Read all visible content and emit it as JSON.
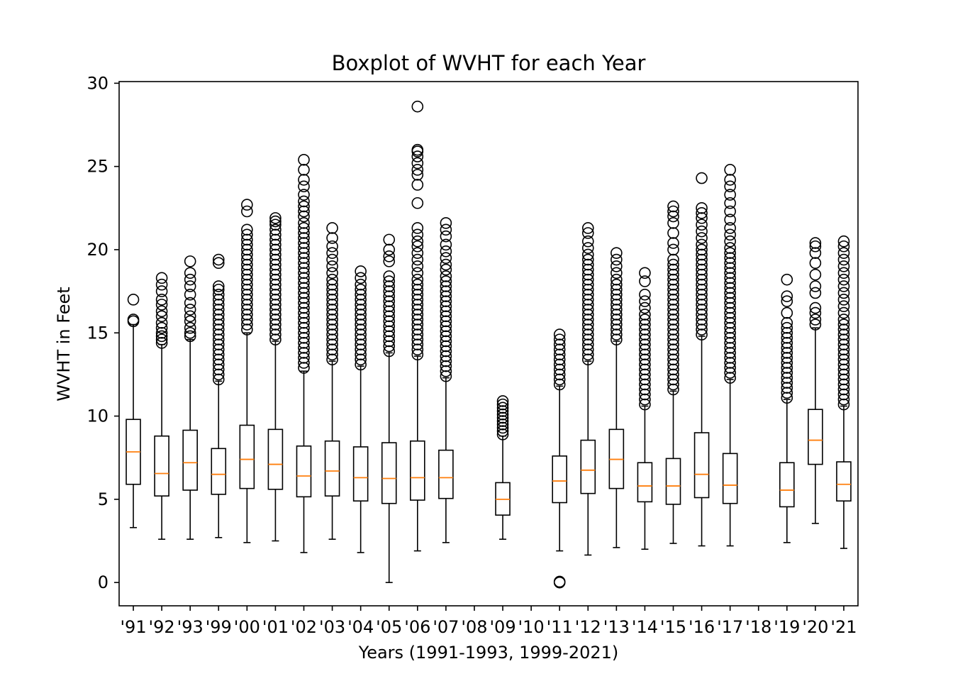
{
  "chart_data": {
    "type": "box",
    "title": "Boxplot of WVHT for each Year",
    "xlabel": "Years (1991-1993, 1999-2021)",
    "ylabel": "WVHT in Feet",
    "ylim": [
      -1.4,
      30.1
    ],
    "yticks": [
      0,
      5,
      10,
      15,
      20,
      25,
      30
    ],
    "grid": false,
    "colors": {
      "box": "#000000",
      "median": "#ff7f0e",
      "background": "#ffffff"
    },
    "categories": [
      "'91",
      "'92",
      "'93",
      "'99",
      "'00",
      "'01",
      "'02",
      "'03",
      "'04",
      "'05",
      "'06",
      "'07",
      "'08",
      "'09",
      "'10",
      "'11",
      "'12",
      "'13",
      "'14",
      "'15",
      "'16",
      "'17",
      "'18",
      "'19",
      "'20",
      "'21"
    ],
    "boxes": [
      {
        "label": "'91",
        "whislo": 3.3,
        "q1": 5.9,
        "med": 7.85,
        "q3": 9.8,
        "whishi": 15.5,
        "fliers": [
          15.7,
          15.8,
          17.0
        ]
      },
      {
        "label": "'92",
        "whislo": 2.6,
        "q1": 5.2,
        "med": 6.55,
        "q3": 8.8,
        "whishi": 14.3,
        "fliers": [
          14.4,
          14.6,
          14.8,
          15.0,
          15.3,
          15.6,
          16.0,
          16.3,
          16.7,
          17.0,
          17.5,
          17.9,
          18.3
        ]
      },
      {
        "label": "'93",
        "whislo": 2.6,
        "q1": 5.55,
        "med": 7.2,
        "q3": 9.15,
        "whishi": 14.6,
        "fliers": [
          14.8,
          15.0,
          15.3,
          15.7,
          16.0,
          16.4,
          16.8,
          17.3,
          17.8,
          18.2,
          18.6,
          19.3
        ]
      },
      {
        "label": "'99",
        "whislo": 2.7,
        "q1": 5.3,
        "med": 6.5,
        "q3": 8.05,
        "whishi": 12.1,
        "fliers": [
          12.2,
          12.5,
          12.8,
          13.1,
          13.4,
          13.7,
          14.0,
          14.3,
          14.6,
          14.9,
          15.2,
          15.5,
          15.8,
          16.1,
          16.4,
          16.7,
          17.0,
          17.3,
          17.6,
          17.8,
          19.2,
          19.4
        ]
      },
      {
        "label": "'00",
        "whislo": 2.4,
        "q1": 5.65,
        "med": 7.4,
        "q3": 9.45,
        "whishi": 15.0,
        "fliers": [
          15.2,
          15.5,
          15.8,
          16.1,
          16.4,
          16.7,
          17.0,
          17.3,
          17.6,
          17.9,
          18.2,
          18.5,
          18.8,
          19.1,
          19.4,
          19.7,
          20.0,
          20.3,
          20.6,
          20.9,
          21.2,
          22.3,
          22.7
        ]
      },
      {
        "label": "'01",
        "whislo": 2.5,
        "q1": 5.6,
        "med": 7.1,
        "q3": 9.2,
        "whishi": 14.5,
        "fliers": [
          14.6,
          14.9,
          15.2,
          15.5,
          15.8,
          16.1,
          16.4,
          16.7,
          17.0,
          17.3,
          17.6,
          17.9,
          18.2,
          18.5,
          18.8,
          19.1,
          19.4,
          19.7,
          20.0,
          20.3,
          20.6,
          20.9,
          21.2,
          21.5,
          21.7,
          21.9
        ]
      },
      {
        "label": "'02",
        "whislo": 1.8,
        "q1": 5.15,
        "med": 6.4,
        "q3": 8.2,
        "whishi": 12.7,
        "fliers": [
          12.9,
          13.2,
          13.5,
          13.8,
          14.1,
          14.4,
          14.7,
          15.0,
          15.3,
          15.6,
          15.9,
          16.2,
          16.5,
          16.8,
          17.1,
          17.4,
          17.7,
          18.0,
          18.3,
          18.6,
          18.9,
          19.2,
          19.5,
          19.8,
          20.1,
          20.4,
          20.7,
          21.0,
          21.3,
          21.6,
          22.0,
          22.3,
          22.6,
          22.9,
          23.3,
          23.8,
          24.2,
          24.8,
          25.4
        ]
      },
      {
        "label": "'03",
        "whislo": 2.6,
        "q1": 5.2,
        "med": 6.7,
        "q3": 8.5,
        "whishi": 13.3,
        "fliers": [
          13.4,
          13.7,
          14.0,
          14.3,
          14.6,
          14.9,
          15.2,
          15.5,
          15.8,
          16.1,
          16.4,
          16.7,
          17.0,
          17.3,
          17.6,
          17.9,
          18.2,
          18.6,
          19.0,
          19.4,
          19.8,
          20.2,
          20.7,
          21.3
        ]
      },
      {
        "label": "'04",
        "whislo": 1.8,
        "q1": 4.9,
        "med": 6.3,
        "q3": 8.15,
        "whishi": 13.0,
        "fliers": [
          13.1,
          13.4,
          13.7,
          14.0,
          14.3,
          14.6,
          14.9,
          15.2,
          15.5,
          15.8,
          16.1,
          16.4,
          16.7,
          17.0,
          17.3,
          17.6,
          17.9,
          18.3,
          18.7
        ]
      },
      {
        "label": "'05",
        "whislo": 0.0,
        "q1": 4.75,
        "med": 6.25,
        "q3": 8.4,
        "whishi": 13.8,
        "fliers": [
          13.9,
          14.2,
          14.5,
          14.8,
          15.1,
          15.4,
          15.7,
          16.0,
          16.3,
          16.6,
          16.9,
          17.2,
          17.5,
          17.8,
          18.1,
          18.4,
          19.3,
          19.6,
          20.0,
          20.6
        ]
      },
      {
        "label": "'06",
        "whislo": 1.9,
        "q1": 4.95,
        "med": 6.3,
        "q3": 8.5,
        "whishi": 13.6,
        "fliers": [
          13.7,
          14.0,
          14.3,
          14.6,
          14.9,
          15.2,
          15.5,
          15.8,
          16.1,
          16.4,
          16.7,
          17.0,
          17.3,
          17.6,
          17.9,
          18.2,
          18.6,
          19.0,
          19.4,
          19.8,
          20.2,
          20.5,
          20.9,
          21.3,
          22.8,
          23.9,
          24.5,
          24.8,
          25.2,
          25.6,
          25.9,
          26.0,
          28.6
        ]
      },
      {
        "label": "'07",
        "whislo": 2.4,
        "q1": 5.05,
        "med": 6.3,
        "q3": 7.95,
        "whishi": 12.3,
        "fliers": [
          12.4,
          12.7,
          13.0,
          13.3,
          13.6,
          13.9,
          14.2,
          14.5,
          14.8,
          15.1,
          15.4,
          15.7,
          16.0,
          16.3,
          16.6,
          16.9,
          17.2,
          17.5,
          17.8,
          18.1,
          18.4,
          18.8,
          19.1,
          19.5,
          19.9,
          20.3,
          20.8,
          21.2,
          21.6
        ]
      },
      {
        "label": "'08"
      },
      {
        "label": "'09",
        "whislo": 2.6,
        "q1": 4.05,
        "med": 5.0,
        "q3": 6.0,
        "whishi": 8.8,
        "fliers": [
          8.9,
          9.1,
          9.3,
          9.5,
          9.7,
          9.9,
          10.1,
          10.3,
          10.5,
          10.7,
          10.9
        ]
      },
      {
        "label": "'10"
      },
      {
        "label": "'11",
        "whislo": 1.9,
        "q1": 4.8,
        "med": 6.1,
        "q3": 7.6,
        "whishi": 11.8,
        "fliers": [
          0.0,
          0.05,
          11.9,
          12.2,
          12.5,
          12.8,
          13.1,
          13.4,
          13.7,
          14.0,
          14.3,
          14.6,
          14.9
        ]
      },
      {
        "label": "'12",
        "whislo": 1.65,
        "q1": 5.35,
        "med": 6.75,
        "q3": 8.55,
        "whishi": 13.3,
        "fliers": [
          13.4,
          13.7,
          14.0,
          14.3,
          14.6,
          14.9,
          15.2,
          15.5,
          15.8,
          16.1,
          16.4,
          16.7,
          17.0,
          17.3,
          17.6,
          17.9,
          18.2,
          18.5,
          18.8,
          19.1,
          19.4,
          19.7,
          20.1,
          20.5,
          21.0,
          21.3
        ]
      },
      {
        "label": "'13",
        "whislo": 2.1,
        "q1": 5.65,
        "med": 7.4,
        "q3": 9.2,
        "whishi": 14.5,
        "fliers": [
          14.6,
          14.9,
          15.2,
          15.5,
          15.8,
          16.1,
          16.4,
          16.7,
          17.0,
          17.3,
          17.6,
          17.9,
          18.2,
          18.6,
          19.0,
          19.4,
          19.8
        ]
      },
      {
        "label": "'14",
        "whislo": 2.0,
        "q1": 4.85,
        "med": 5.8,
        "q3": 7.2,
        "whishi": 10.6,
        "fliers": [
          10.7,
          11.0,
          11.3,
          11.6,
          11.9,
          12.2,
          12.5,
          12.8,
          13.1,
          13.4,
          13.7,
          14.0,
          14.3,
          14.6,
          14.9,
          15.2,
          15.5,
          15.8,
          16.1,
          16.5,
          16.9,
          17.3,
          18.1,
          18.6
        ]
      },
      {
        "label": "'15",
        "whislo": 2.35,
        "q1": 4.7,
        "med": 5.8,
        "q3": 7.45,
        "whishi": 11.5,
        "fliers": [
          11.6,
          11.9,
          12.2,
          12.5,
          12.8,
          13.1,
          13.4,
          13.7,
          14.0,
          14.3,
          14.6,
          14.9,
          15.2,
          15.5,
          15.8,
          16.1,
          16.4,
          16.7,
          17.0,
          17.3,
          17.6,
          17.9,
          18.2,
          18.5,
          18.8,
          19.1,
          19.4,
          20.0,
          20.4,
          21.0,
          21.6,
          22.0,
          22.3,
          22.6
        ]
      },
      {
        "label": "'16",
        "whislo": 2.2,
        "q1": 5.1,
        "med": 6.5,
        "q3": 9.0,
        "whishi": 14.8,
        "fliers": [
          14.9,
          15.2,
          15.5,
          15.8,
          16.1,
          16.4,
          16.7,
          17.0,
          17.3,
          17.6,
          17.9,
          18.2,
          18.5,
          18.8,
          19.1,
          19.4,
          19.7,
          20.0,
          20.3,
          20.7,
          21.1,
          21.5,
          21.9,
          22.2,
          22.5,
          24.3
        ]
      },
      {
        "label": "'17",
        "whislo": 2.2,
        "q1": 4.75,
        "med": 5.85,
        "q3": 7.75,
        "whishi": 12.2,
        "fliers": [
          12.3,
          12.6,
          12.9,
          13.2,
          13.5,
          13.8,
          14.1,
          14.4,
          14.7,
          15.0,
          15.3,
          15.6,
          15.9,
          16.2,
          16.5,
          16.8,
          17.1,
          17.4,
          17.7,
          18.0,
          18.3,
          18.6,
          18.9,
          19.2,
          19.5,
          19.8,
          20.1,
          20.5,
          20.9,
          21.3,
          21.8,
          22.3,
          22.8,
          23.3,
          23.8,
          24.2,
          24.8
        ]
      },
      {
        "label": "'18"
      },
      {
        "label": "'19",
        "whislo": 2.4,
        "q1": 4.55,
        "med": 5.55,
        "q3": 7.2,
        "whishi": 11.0,
        "fliers": [
          11.1,
          11.4,
          11.7,
          12.0,
          12.3,
          12.6,
          12.9,
          13.2,
          13.5,
          13.8,
          14.1,
          14.4,
          14.7,
          15.0,
          15.3,
          15.6,
          16.2,
          16.9,
          17.2,
          18.2
        ]
      },
      {
        "label": "'20",
        "whislo": 3.55,
        "q1": 7.1,
        "med": 8.55,
        "q3": 10.4,
        "whishi": 15.3,
        "fliers": [
          15.5,
          15.8,
          16.2,
          16.5,
          17.4,
          17.8,
          18.5,
          19.2,
          19.8,
          20.2,
          20.4
        ]
      },
      {
        "label": "'21",
        "whislo": 2.05,
        "q1": 4.9,
        "med": 5.9,
        "q3": 7.25,
        "whishi": 10.6,
        "fliers": [
          10.7,
          11.0,
          11.3,
          11.6,
          11.9,
          12.2,
          12.5,
          12.8,
          13.1,
          13.4,
          13.7,
          14.0,
          14.3,
          14.6,
          14.9,
          15.2,
          15.5,
          15.8,
          16.2,
          16.6,
          17.0,
          17.4,
          17.8,
          18.2,
          18.6,
          19.0,
          19.4,
          19.8,
          20.2,
          20.5
        ]
      }
    ]
  }
}
